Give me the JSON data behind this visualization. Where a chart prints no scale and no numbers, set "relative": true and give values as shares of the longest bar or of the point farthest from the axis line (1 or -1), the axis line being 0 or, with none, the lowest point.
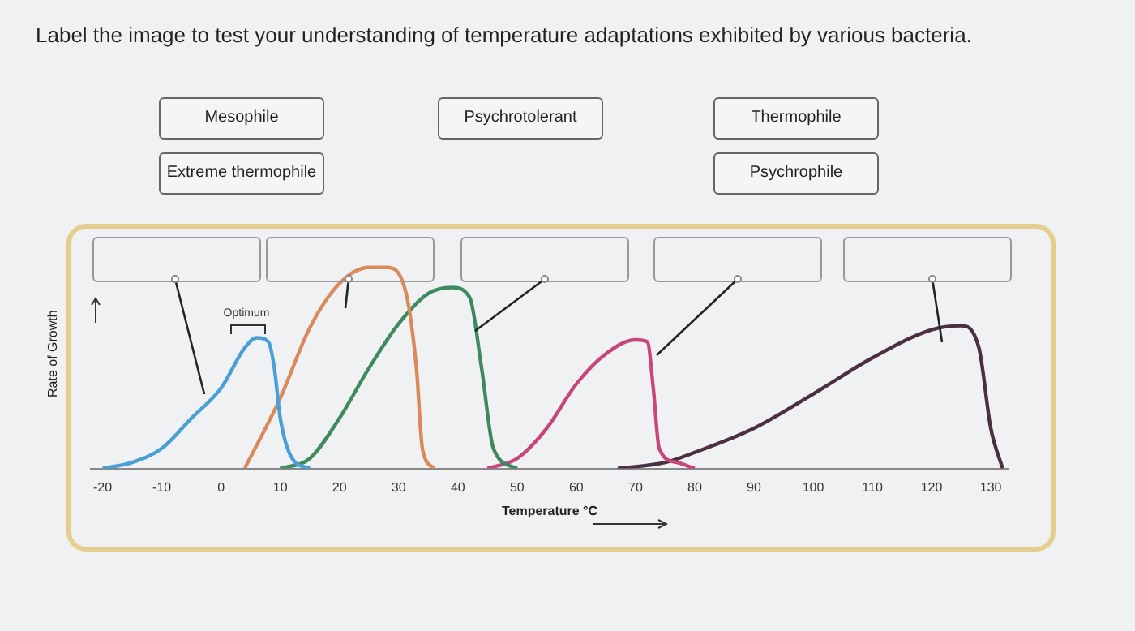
{
  "chart_data": {
    "type": "line",
    "title": "Label the image to test your understanding of temperature adaptations exhibited by various bacteria.",
    "xlabel": "Temperature °C",
    "ylabel": "Rate of Growth",
    "relative": true,
    "xlim": [
      -22,
      133
    ],
    "xticks": [
      -20,
      -10,
      0,
      10,
      20,
      30,
      40,
      50,
      60,
      70,
      80,
      90,
      100,
      110,
      120,
      130
    ],
    "grid": false,
    "legend": false,
    "annotations": [
      "Mesophile",
      "Psychrotolerant",
      "Thermophile",
      "Extreme thermophile",
      "Psychrophile",
      "Optimum"
    ],
    "series": [
      {
        "color": "#4a9fd6",
        "x": [
          -20,
          -15,
          -10,
          -5,
          0,
          4,
          6,
          8,
          9,
          10,
          12,
          15
        ],
        "values": [
          0,
          0.03,
          0.1,
          0.25,
          0.4,
          0.6,
          0.65,
          0.63,
          0.5,
          0.25,
          0.05,
          0
        ]
      },
      {
        "color": "#d98a5a",
        "x": [
          4,
          10,
          15,
          20,
          25,
          28,
          31,
          33,
          34,
          36
        ],
        "values": [
          0,
          0.35,
          0.7,
          0.92,
          1,
          1,
          0.9,
          0.5,
          0.1,
          0
        ]
      },
      {
        "color": "#3e8a5e",
        "x": [
          10,
          15,
          20,
          25,
          30,
          35,
          39,
          42,
          44,
          46,
          50
        ],
        "values": [
          0,
          0.05,
          0.25,
          0.5,
          0.72,
          0.87,
          0.9,
          0.85,
          0.5,
          0.1,
          0
        ]
      },
      {
        "color": "#c8477a",
        "x": [
          45,
          50,
          55,
          60,
          65,
          70,
          72,
          73,
          74,
          77,
          80
        ],
        "values": [
          0,
          0.05,
          0.2,
          0.42,
          0.57,
          0.64,
          0.63,
          0.4,
          0.1,
          0.03,
          0
        ]
      },
      {
        "color": "#4a3040",
        "x": [
          67,
          75,
          80,
          90,
          100,
          110,
          120,
          125,
          128,
          130,
          132
        ],
        "values": [
          0,
          0.03,
          0.08,
          0.2,
          0.37,
          0.55,
          0.69,
          0.71,
          0.6,
          0.2,
          0
        ]
      }
    ]
  }
}
